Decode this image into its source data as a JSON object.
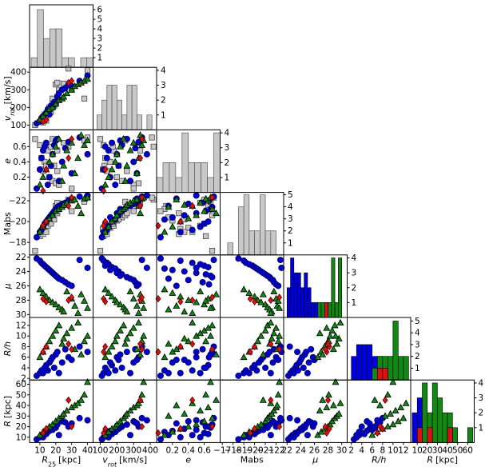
{
  "chart_data": {
    "type": "corner",
    "variables": [
      {
        "name": "R",
        "sub": "25",
        "unit": "[kpc]",
        "italic": true,
        "xlim": [
          3.5,
          43.5
        ],
        "xticks": [
          10,
          20,
          30,
          40
        ]
      },
      {
        "name": "v",
        "sub": "rot",
        "unit": "[km/s]",
        "italic": true,
        "xlim": [
          57,
          438
        ],
        "xticks": [
          100,
          200,
          300,
          400
        ],
        "ylim": [
          73,
          427
        ],
        "yticks": [
          100,
          200,
          300,
          400
        ]
      },
      {
        "name": "e",
        "italic": true,
        "xlim": [
          0,
          0.8
        ],
        "xticks": [
          0.2,
          0.4,
          0.6
        ],
        "ylim": [
          0,
          0.82
        ],
        "yticks": [
          0.2,
          0.4,
          0.6
        ]
      },
      {
        "name": "Mabs",
        "italic": false,
        "xlim": [
          -16.8,
          -22.7
        ],
        "xticks": [
          {
            "value": -17,
            "label": "−17"
          },
          {
            "value": -18,
            "label": "−18"
          },
          {
            "value": -19,
            "label": "−19"
          },
          {
            "value": -20,
            "label": "−20"
          },
          {
            "value": -21,
            "label": "−21"
          },
          {
            "value": -22,
            "label": "−22"
          }
        ],
        "ylim": [
          -16.8,
          -22.8
        ],
        "yticks": [
          {
            "value": -18,
            "label": "−18"
          },
          {
            "value": -20,
            "label": "−20"
          },
          {
            "value": -22,
            "label": "−22"
          }
        ]
      },
      {
        "name": "μ",
        "italic": true,
        "xlim": [
          21.5,
          30.8
        ],
        "xticks": [
          22,
          24,
          26,
          28,
          30
        ],
        "ylim": [
          30.4,
          21.7
        ],
        "yticks": [
          22,
          24,
          26,
          28,
          30
        ]
      },
      {
        "name": "R/h",
        "italic": true,
        "xlim": [
          1.2,
          13.4
        ],
        "xticks": [
          2,
          4,
          6,
          8,
          10,
          12
        ],
        "ylim": [
          1.7,
          13.5
        ],
        "yticks": [
          2,
          4,
          6,
          8,
          10,
          12
        ]
      },
      {
        "name": "R",
        "unit": "[kpc]",
        "italic": true,
        "xlim": [
          3.5,
          66.5
        ],
        "xticks": [
          10,
          20,
          30,
          40,
          50,
          60
        ],
        "ylim": [
          5,
          64
        ],
        "yticks": [
          10,
          20,
          30,
          40,
          50,
          60
        ]
      }
    ],
    "groups": [
      {
        "marker": "square",
        "color": "#c8c8c8",
        "edge": "#444444",
        "values": [
          [
            7,
            10,
            11,
            12,
            12,
            13,
            14,
            15,
            16,
            17,
            18,
            18,
            19,
            20,
            21,
            21,
            22,
            25,
            28,
            30,
            38,
            40
          ],
          [
            100,
            120,
            130,
            115,
            140,
            160,
            125,
            180,
            200,
            175,
            230,
            250,
            210,
            330,
            340,
            260,
            300,
            335,
            420,
            300,
            250,
            410
          ],
          [
            0.7,
            0.62,
            0.45,
            0.3,
            0.28,
            0.4,
            0.35,
            0.55,
            0.2,
            0.6,
            0.15,
            0.7,
            0.35,
            0.12,
            0.55,
            0.28,
            0.1,
            0.65,
            0.6,
            0.05,
            0.68,
            0.72
          ],
          [
            -17.2,
            -18.6,
            -19.0,
            -19.3,
            -18.8,
            -19.4,
            -19.0,
            -19.6,
            -20.1,
            -19.8,
            -20.4,
            -20.6,
            -20.2,
            -21.5,
            -21.8,
            -20.8,
            -21.2,
            -21.6,
            -22.1,
            -21.0,
            -21.9,
            -22.3
          ]
        ]
      },
      {
        "marker": "circle",
        "color": "#0000cc",
        "edge": "#000066",
        "values": [
          [
            8,
            10,
            11,
            12,
            13,
            14,
            15,
            16,
            17,
            18,
            19,
            20,
            21,
            22,
            24,
            26,
            28,
            30,
            35,
            40
          ],
          [
            110,
            120,
            140,
            150,
            130,
            170,
            190,
            160,
            210,
            200,
            230,
            220,
            260,
            280,
            300,
            310,
            330,
            320,
            350,
            380
          ],
          [
            0.05,
            0.3,
            0.45,
            0.55,
            0.6,
            0.65,
            0.1,
            0.2,
            0.35,
            0.5,
            0.62,
            0.68,
            0.7,
            0.15,
            0.4,
            0.58,
            0.66,
            0.25,
            0.72,
            0.5
          ],
          [
            -18.5,
            -19.0,
            -19.2,
            -19.5,
            -19.8,
            -20.0,
            -20.2,
            -20.4,
            -20.6,
            -20.8,
            -21.0,
            -21.2,
            -21.4,
            -21.5,
            -21.7,
            -21.8,
            -22.0,
            -22.2,
            -22.4,
            -22.5
          ],
          [
            22.2,
            22.5,
            22.8,
            23.0,
            23.2,
            23.4,
            23.6,
            23.8,
            24.0,
            24.2,
            24.4,
            24.6,
            24.8,
            25.0,
            25.2,
            25.5,
            25.8,
            26.0,
            22.4,
            23.5
          ],
          [
            2.5,
            3.0,
            3.5,
            3.0,
            4.0,
            4.5,
            3.5,
            5.0,
            5.5,
            6.0,
            4.0,
            6.5,
            7.0,
            3.0,
            5.0,
            7.5,
            6.0,
            5.5,
            8.0,
            7.0
          ],
          [
            8,
            10,
            12,
            10,
            14,
            13,
            15,
            16,
            18,
            17,
            20,
            19,
            22,
            12,
            25,
            24,
            20,
            23,
            28,
            26
          ]
        ]
      },
      {
        "marker": "triangle",
        "color": "#118811",
        "edge": "#000000",
        "values": [
          [
            10,
            12,
            14,
            16,
            18,
            20,
            22,
            24,
            25,
            27,
            30,
            32,
            34,
            36,
            38,
            40
          ],
          [
            130,
            150,
            170,
            190,
            200,
            220,
            240,
            250,
            260,
            280,
            300,
            320,
            330,
            340,
            350,
            360
          ],
          [
            0.1,
            0.2,
            0.3,
            0.4,
            0.5,
            0.6,
            0.7,
            0.15,
            0.35,
            0.55,
            0.65,
            0.25,
            0.45,
            0.75,
            0.62,
            0.68
          ],
          [
            -19.0,
            -19.5,
            -20.0,
            -20.3,
            -20.6,
            -21.0,
            -21.2,
            -21.4,
            -21.6,
            -21.8,
            -22.0,
            -22.1,
            -21.5,
            -20.8,
            -22.2,
            -22.3
          ],
          [
            26.5,
            27.0,
            27.5,
            28.0,
            28.3,
            28.6,
            29.0,
            29.3,
            29.6,
            26.8,
            27.8,
            28.8,
            29.8,
            27.2,
            28.1,
            29.1
          ],
          [
            6,
            7,
            8,
            9,
            10,
            11,
            12,
            8.5,
            9.5,
            10.5,
            11.5,
            7.5,
            12.5,
            6.5,
            9,
            10
          ],
          [
            12,
            15,
            18,
            20,
            22,
            25,
            28,
            30,
            32,
            35,
            38,
            40,
            42,
            45,
            50,
            62
          ]
        ]
      },
      {
        "marker": "diamond",
        "color": "#dd1111",
        "edge": "#550000",
        "values": [
          [
            12,
            14,
            28,
            30
          ],
          [
            120,
            130,
            340,
            350
          ],
          [
            0.02,
            0.3,
            0.45,
            0.7
          ],
          [
            -19.6,
            -20.0,
            -21.5,
            -22.3
          ],
          [
            27.8,
            28.2,
            28.0,
            27.6
          ],
          [
            7,
            8,
            8.5,
            7.5
          ],
          [
            14,
            18,
            45,
            20
          ]
        ]
      }
    ],
    "histograms": [
      {
        "bins": [
          4.5,
          8.4,
          12.3,
          16.2,
          20.1,
          24,
          27.9,
          31.8,
          35.7,
          39.6,
          43.5
        ],
        "ylim": [
          0,
          6.5
        ],
        "yticks": [
          1,
          2,
          3,
          4,
          5,
          6
        ],
        "series": [
          {
            "color": "#c8c8c8",
            "edge": "#444444",
            "values": [
              1,
              6,
              3,
              4,
              4,
              1,
              1,
              0,
              1,
              1
            ]
          }
        ]
      },
      {
        "bins": [
          80,
          110,
          140,
          170,
          200,
          230,
          260,
          290,
          320,
          350,
          380,
          410
        ],
        "ylim": [
          0,
          4.2
        ],
        "yticks": [
          1,
          2,
          3,
          4
        ],
        "series": [
          {
            "color": "#c8c8c8",
            "edge": "#444444",
            "values": [
              1,
              2,
              3,
              3,
              2,
              1,
              3,
              3,
              1,
              0,
              1
            ]
          }
        ]
      },
      {
        "bins": [
          0,
          0.08,
          0.16,
          0.24,
          0.32,
          0.4,
          0.48,
          0.56,
          0.64,
          0.72,
          0.8
        ],
        "ylim": [
          0,
          4.2
        ],
        "yticks": [
          1,
          2,
          3,
          4
        ],
        "series": [
          {
            "color": "#c8c8c8",
            "edge": "#444444",
            "values": [
              1,
              2,
              2,
              1,
              4,
              2,
              2,
              2,
              1,
              4
            ]
          }
        ]
      },
      {
        "bins": [
          -17.5,
          -18.0,
          -18.5,
          -19.0,
          -19.5,
          -20.0,
          -20.5,
          -21.0,
          -21.5,
          -22.0,
          -22.5
        ],
        "ylim": [
          0,
          5.2
        ],
        "yticks": [
          1,
          2,
          3,
          4,
          5
        ],
        "series": [
          {
            "color": "#c8c8c8",
            "edge": "#444444",
            "values": [
              1,
              0,
              4,
              5,
              2,
              2,
              5,
              2,
              2,
              0
            ]
          }
        ]
      },
      {
        "bins": [
          22,
          22.5,
          23,
          23.5,
          24,
          24.5,
          25,
          25.5,
          26,
          26.5,
          27,
          27.5,
          28,
          28.5,
          29,
          29.5,
          30
        ],
        "ylim": [
          0,
          4.2
        ],
        "yticks": [
          1,
          2,
          3,
          4
        ],
        "series": [
          {
            "color": "#0000dd",
            "edge": "#000000",
            "values": [
              2,
              4,
              3,
              3,
              2,
              3,
              2,
              1,
              1,
              0,
              0,
              0,
              0,
              0,
              0,
              0
            ]
          },
          {
            "color": "#118811",
            "edge": "#000000",
            "values": [
              0,
              0,
              0,
              0,
              0,
              0,
              0,
              0,
              0,
              1,
              1,
              1,
              1,
              4,
              1,
              4
            ]
          },
          {
            "color": "#dd1111",
            "edge": "#000000",
            "values": [
              0,
              0,
              0,
              0,
              0,
              0,
              0,
              0,
              0,
              0,
              0,
              1,
              0,
              0,
              0,
              0
            ]
          }
        ]
      },
      {
        "bins": [
          2,
          3,
          4,
          5,
          6,
          7,
          8,
          9,
          10,
          11,
          12,
          13
        ],
        "ylim": [
          0,
          5.3
        ],
        "yticks": [
          1,
          2,
          3,
          4,
          5
        ],
        "series": [
          {
            "color": "#0000dd",
            "edge": "#000000",
            "values": [
              2,
              3,
              3,
              3,
              2,
              2,
              1,
              0,
              0,
              0,
              0
            ]
          },
          {
            "color": "#118811",
            "edge": "#000000",
            "values": [
              0,
              0,
              0,
              0,
              1,
              2,
              2,
              2,
              5,
              2,
              2
            ]
          },
          {
            "color": "#dd1111",
            "edge": "#000000",
            "values": [
              0,
              0,
              0,
              0,
              0,
              1,
              1,
              0,
              0,
              0,
              0
            ]
          }
        ]
      },
      {
        "bins": [
          5,
          10,
          15,
          20,
          25,
          30,
          35,
          40,
          45,
          50,
          55,
          60,
          65
        ],
        "ylim": [
          0,
          4.2
        ],
        "yticks": [
          1,
          2,
          3,
          4
        ],
        "series": [
          {
            "color": "#0000dd",
            "edge": "#000000",
            "values": [
              2,
              3,
              2,
              1,
              0,
              0,
              0,
              0,
              0,
              0,
              0,
              0
            ]
          },
          {
            "color": "#118811",
            "edge": "#000000",
            "values": [
              0,
              1,
              4,
              2,
              4,
              3,
              2,
              2,
              1,
              0,
              0,
              1
            ]
          },
          {
            "color": "#dd1111",
            "edge": "#000000",
            "values": [
              0,
              1,
              0,
              1,
              0,
              0,
              0,
              1,
              0,
              0,
              0,
              0
            ]
          }
        ]
      }
    ]
  }
}
